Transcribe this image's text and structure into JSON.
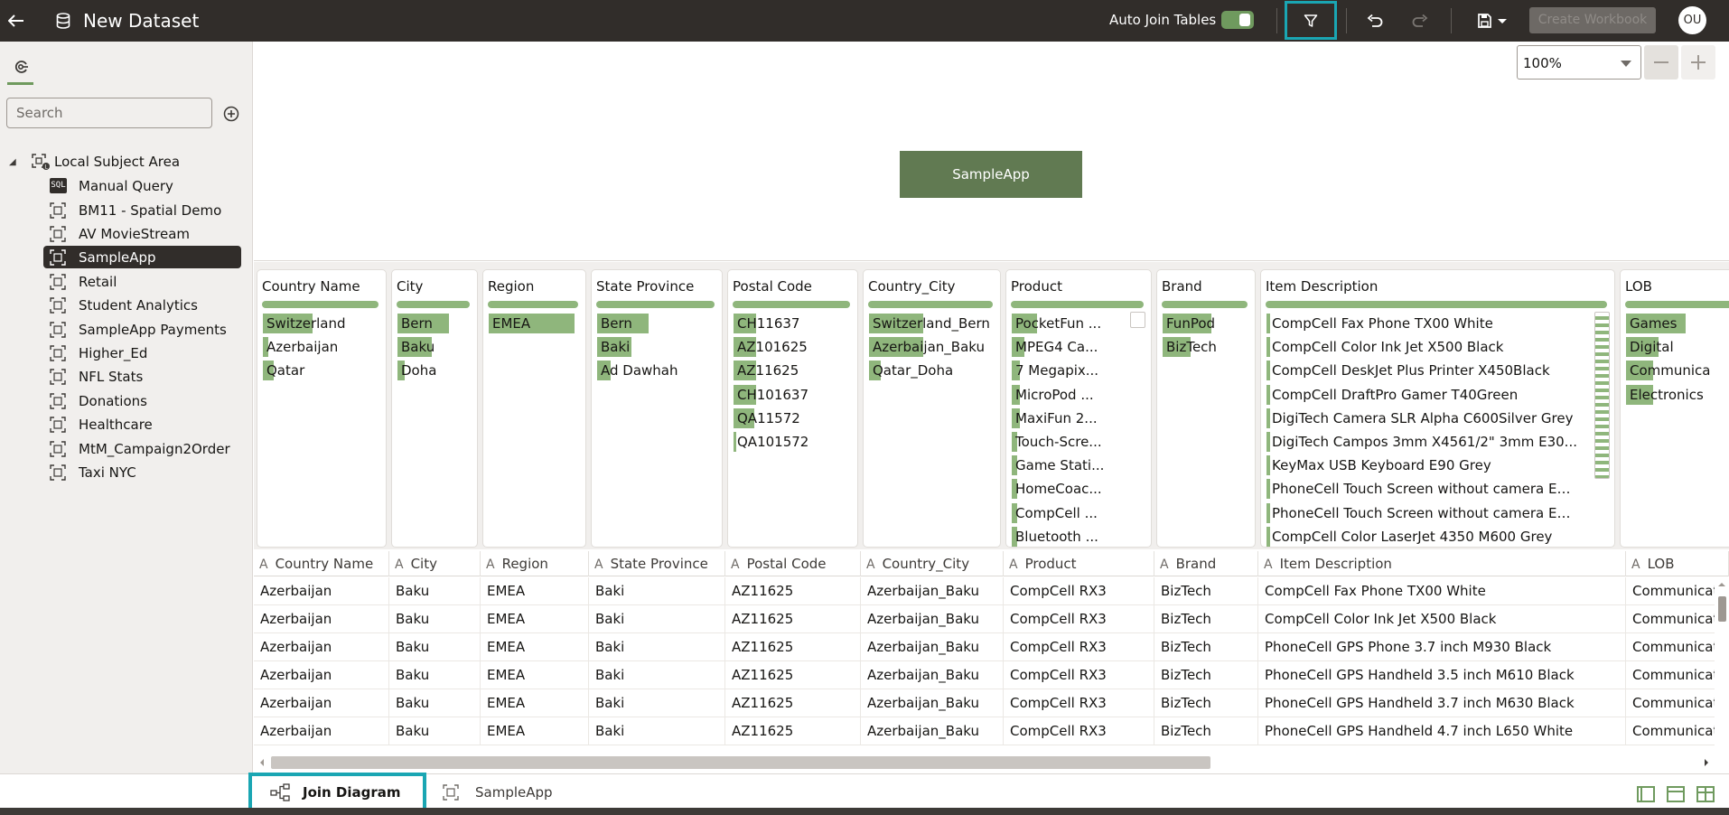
{
  "header": {
    "title": "New Dataset",
    "auto_join_label": "Auto Join Tables",
    "auto_join_on": true,
    "create_workbook_label": "Create Workbook",
    "avatar_initials": "OU"
  },
  "sidebar": {
    "search_placeholder": "Search",
    "root_label": "Local Subject Area",
    "items": [
      {
        "label": "Manual Query",
        "icon": "sql-icon"
      },
      {
        "label": "BM11 - Spatial Demo",
        "icon": "subject-area-icon"
      },
      {
        "label": "AV MovieStream",
        "icon": "subject-area-icon"
      },
      {
        "label": "SampleApp",
        "icon": "subject-area-icon",
        "selected": true
      },
      {
        "label": "Retail",
        "icon": "subject-area-icon"
      },
      {
        "label": "Student Analytics",
        "icon": "subject-area-icon"
      },
      {
        "label": "SampleApp Payments",
        "icon": "subject-area-icon"
      },
      {
        "label": "Higher_Ed",
        "icon": "subject-area-icon"
      },
      {
        "label": "NFL Stats",
        "icon": "subject-area-icon"
      },
      {
        "label": "Donations",
        "icon": "subject-area-icon"
      },
      {
        "label": "Healthcare",
        "icon": "subject-area-icon"
      },
      {
        "label": "MtM_Campaign2Order",
        "icon": "subject-area-icon"
      },
      {
        "label": "Taxi NYC",
        "icon": "subject-area-icon"
      }
    ]
  },
  "diagram": {
    "zoom": "100%",
    "node_label": "SampleApp"
  },
  "profile": {
    "columns": [
      {
        "title": "Country Name",
        "values": [
          [
            "Switzerland",
            0.44
          ],
          [
            "Azerbaijan",
            0.05
          ],
          [
            "Qatar",
            0.1
          ]
        ]
      },
      {
        "title": "City",
        "values": [
          [
            "Bern",
            0.75
          ],
          [
            "Baku",
            0.5
          ],
          [
            "Doha",
            0.1
          ]
        ]
      },
      {
        "title": "Region",
        "values": [
          [
            "EMEA",
            1.0
          ]
        ]
      },
      {
        "title": "State Province",
        "values": [
          [
            "Bern",
            0.45
          ],
          [
            "Baki",
            0.3
          ],
          [
            "Ad Dawhah",
            0.12
          ]
        ]
      },
      {
        "title": "Postal Code",
        "values": [
          [
            "CH11637",
            0.2
          ],
          [
            "AZ101625",
            0.2
          ],
          [
            "AZ11625",
            0.2
          ],
          [
            "CH101637",
            0.2
          ],
          [
            "QA11572",
            0.18
          ],
          [
            "QA101572",
            0.02
          ]
        ]
      },
      {
        "title": "Country_City",
        "values": [
          [
            "Switzerland_Bern",
            0.45
          ],
          [
            "Azerbaijan_Baku",
            0.45
          ],
          [
            "Qatar_Doha",
            0.1
          ]
        ]
      },
      {
        "title": "Product",
        "values": [
          [
            "PocketFun ...",
            0.2
          ],
          [
            "MPEG4 Ca...",
            0.1
          ],
          [
            "7 Megapix...",
            0.06
          ],
          [
            "MicroPod ...",
            0.06
          ],
          [
            "MaxiFun 2...",
            0.06
          ],
          [
            "Touch-Scre...",
            0.04
          ],
          [
            "Game Stati...",
            0.04
          ],
          [
            "HomeCoac...",
            0.04
          ],
          [
            "CompCell ...",
            0.04
          ],
          [
            "Bluetooth ...",
            0.04
          ]
        ]
      },
      {
        "title": "Brand",
        "values": [
          [
            "FunPod",
            0.6
          ],
          [
            "BizTech",
            0.35
          ]
        ]
      },
      {
        "title": "Item Description",
        "values": [
          [
            "CompCell Fax Phone TX00 White",
            0.01
          ],
          [
            "CompCell Color Ink Jet X500 Black",
            0.01
          ],
          [
            "CompCell DeskJet Plus Printer X450Black",
            0.01
          ],
          [
            "CompCell DraftPro Gamer T40Green",
            0.01
          ],
          [
            "DigiTech Camera SLR Alpha C600Silver Grey",
            0.01
          ],
          [
            "DigiTech Campos 3mm X4561/2\" 3mm E30...",
            0.01
          ],
          [
            "KeyMax USB Keyboard E90 Grey",
            0.01
          ],
          [
            "PhoneCell Touch Screen without camera E10...",
            0.01
          ],
          [
            "PhoneCell Touch Screen without camera E10...",
            0.01
          ],
          [
            "CompCell Color LaserJet 4350 M600 Grey",
            0.01
          ]
        ]
      },
      {
        "title": "LOB",
        "values": [
          [
            "Games",
            0.55
          ],
          [
            "Digital",
            0.3
          ],
          [
            "Communica",
            0.25
          ],
          [
            "Electronics",
            0.25
          ]
        ]
      }
    ]
  },
  "table": {
    "headers": [
      "Country Name",
      "City",
      "Region",
      "State Province",
      "Postal Code",
      "Country_City",
      "Product",
      "Brand",
      "Item Description",
      "LOB"
    ],
    "type_glyph": "A",
    "rows": [
      [
        "Azerbaijan",
        "Baku",
        "EMEA",
        "Baki",
        "AZ11625",
        "Azerbaijan_Baku",
        "CompCell RX3",
        "BizTech",
        "CompCell Fax Phone TX00 White",
        "Communicat"
      ],
      [
        "Azerbaijan",
        "Baku",
        "EMEA",
        "Baki",
        "AZ11625",
        "Azerbaijan_Baku",
        "CompCell RX3",
        "BizTech",
        "CompCell Color Ink Jet X500 Black",
        "Communicat"
      ],
      [
        "Azerbaijan",
        "Baku",
        "EMEA",
        "Baki",
        "AZ11625",
        "Azerbaijan_Baku",
        "CompCell RX3",
        "BizTech",
        "PhoneCell GPS Phone 3.7 inch M930 Black",
        "Communicat"
      ],
      [
        "Azerbaijan",
        "Baku",
        "EMEA",
        "Baki",
        "AZ11625",
        "Azerbaijan_Baku",
        "CompCell RX3",
        "BizTech",
        "PhoneCell GPS Handheld  3.5 inch M610 Black",
        "Communicat"
      ],
      [
        "Azerbaijan",
        "Baku",
        "EMEA",
        "Baki",
        "AZ11625",
        "Azerbaijan_Baku",
        "CompCell RX3",
        "BizTech",
        "PhoneCell GPS Handheld  3.7 inch M630 Black",
        "Communicat"
      ],
      [
        "Azerbaijan",
        "Baku",
        "EMEA",
        "Baki",
        "AZ11625",
        "Azerbaijan_Baku",
        "CompCell RX3",
        "BizTech",
        "PhoneCell GPS Handheld  4.7 inch L650 White",
        "Communicat"
      ]
    ]
  },
  "bottom_tabs": {
    "join_diagram": "Join Diagram",
    "sampleapp": "SampleApp"
  },
  "colors": {
    "header_bg": "#312d2a",
    "accent_green": "#8fb67c",
    "node_green": "#617a52",
    "highlight_teal": "#1aa6b3"
  }
}
